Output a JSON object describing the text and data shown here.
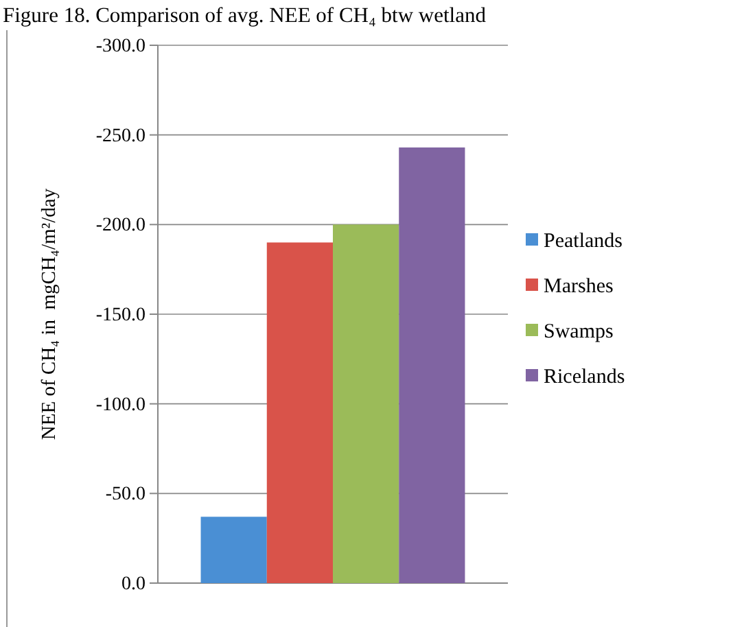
{
  "chart_data": {
    "type": "bar",
    "title": "Figure 18. Comparison of avg. NEE of CH₄ btw wetland",
    "ylabel": "NEE of CH₄ in  mgCH₄/m²/day",
    "categories": [
      null
    ],
    "series": [
      {
        "name": "Peatlands",
        "color": "#4a8fd4",
        "values": [
          -37
        ]
      },
      {
        "name": "Marshes",
        "color": "#d9534a",
        "values": [
          -190
        ]
      },
      {
        "name": "Swamps",
        "color": "#9bbb59",
        "values": [
          -200
        ]
      },
      {
        "name": "Ricelands",
        "color": "#8064a2",
        "values": [
          -243
        ]
      }
    ],
    "ylim": [
      0,
      -300
    ],
    "yticks": [
      {
        "value": 0,
        "label": "0.0"
      },
      {
        "value": -50,
        "label": "-50.0"
      },
      {
        "value": -100,
        "label": "-100.0"
      },
      {
        "value": -150,
        "label": "-150.0"
      },
      {
        "value": -200,
        "label": "-200.0"
      },
      {
        "value": -250,
        "label": "-250.0"
      },
      {
        "value": -300,
        "label": "-300.0"
      }
    ],
    "grid": "y",
    "legend": "right"
  }
}
